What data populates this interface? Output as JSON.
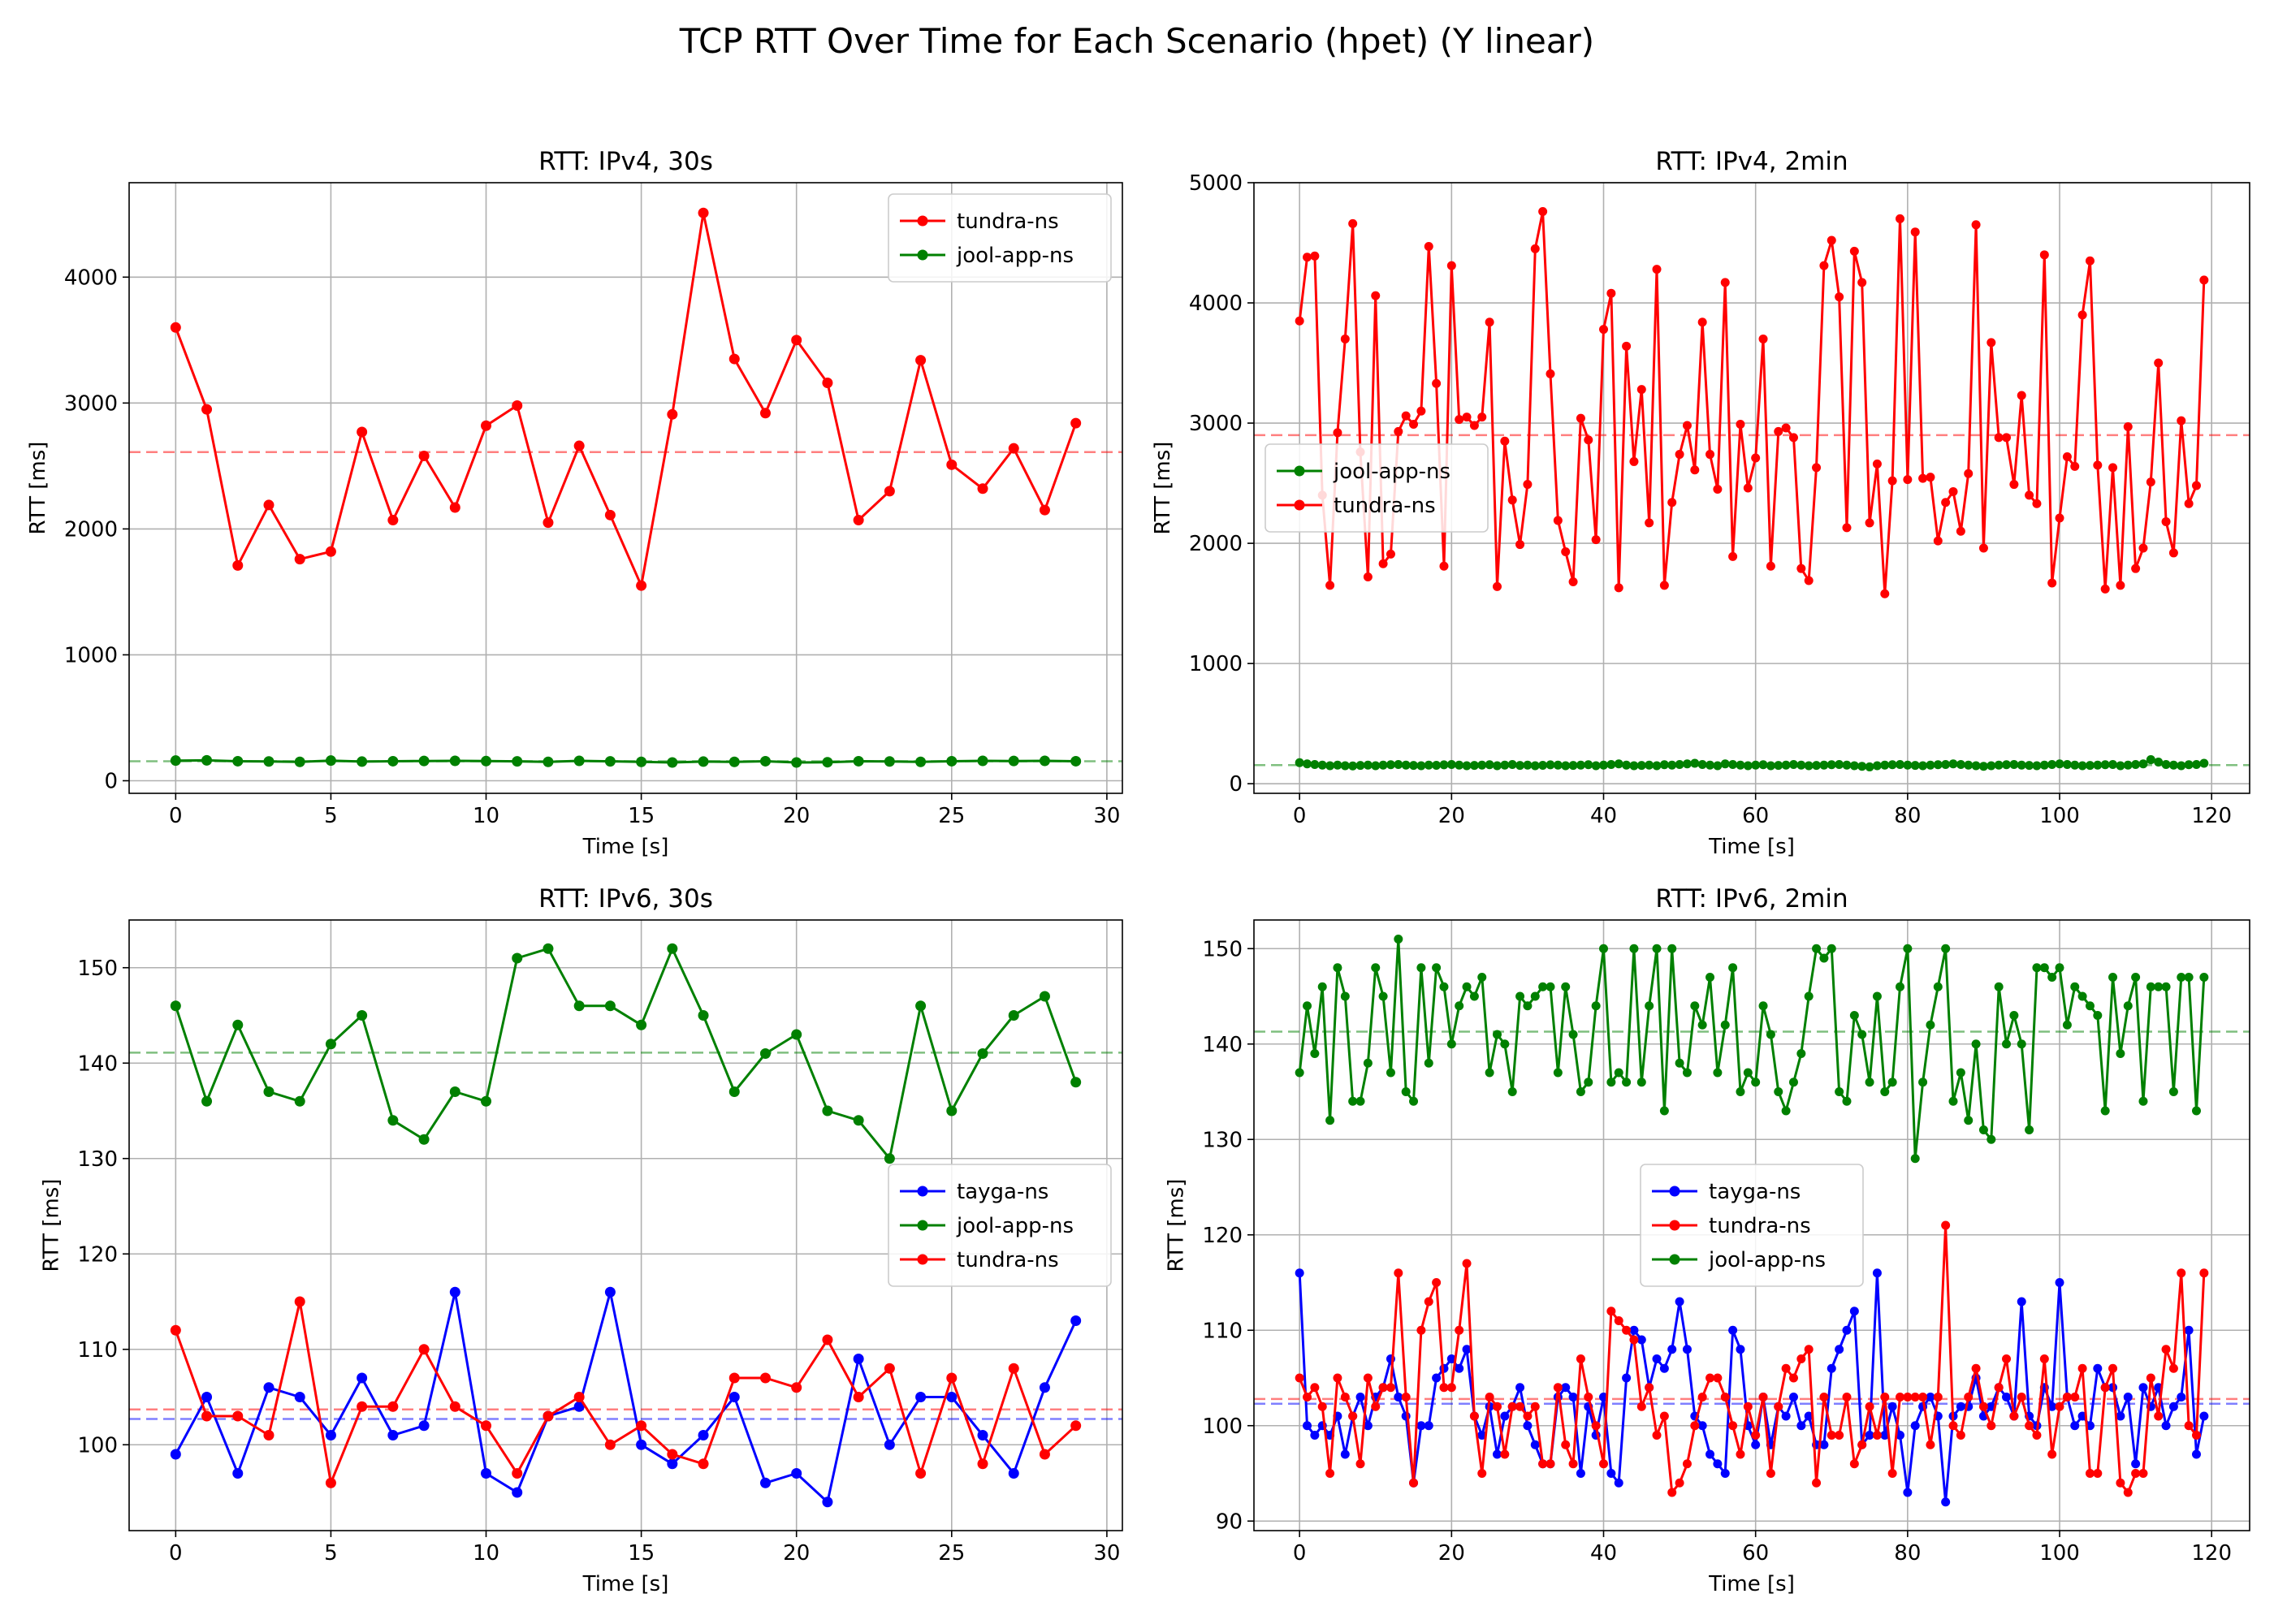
{
  "figure": {
    "suptitle": "TCP RTT Over Time for Each Scenario (hpet) (Y linear)"
  },
  "colors": {
    "red": "#ff0000",
    "green": "#008000",
    "blue": "#0000ff",
    "grid": "#b0b0b0"
  },
  "chart_data": [
    {
      "type": "line",
      "title": "RTT: IPv4, 30s",
      "xlabel": "Time [s]",
      "ylabel": "RTT [ms]",
      "xlim": [
        -1.5,
        30.5
      ],
      "ylim": [
        -100,
        4750
      ],
      "xticks": [
        0,
        5,
        10,
        15,
        20,
        25,
        30
      ],
      "yticks": [
        0,
        1000,
        2000,
        3000,
        4000
      ],
      "grid": true,
      "legend_position": "upper right",
      "x": [
        0,
        1,
        2,
        3,
        4,
        5,
        6,
        7,
        8,
        9,
        10,
        11,
        12,
        13,
        14,
        15,
        16,
        17,
        18,
        19,
        20,
        21,
        22,
        23,
        24,
        25,
        26,
        27,
        28,
        29
      ],
      "series": [
        {
          "name": "tundra-ns",
          "color": "#ff0000",
          "mean": 2610,
          "values": [
            3600,
            2950,
            1710,
            2190,
            1760,
            1820,
            2770,
            2070,
            2580,
            2170,
            2820,
            2980,
            2050,
            2660,
            2110,
            1550,
            2910,
            4510,
            3350,
            2920,
            3500,
            3160,
            2070,
            2300,
            3340,
            2510,
            2320,
            2640,
            2150,
            2840
          ]
        },
        {
          "name": "jool-app-ns",
          "color": "#008000",
          "mean": 155,
          "values": [
            160,
            162,
            155,
            153,
            150,
            160,
            152,
            155,
            157,
            158,
            156,
            154,
            150,
            158,
            154,
            150,
            145,
            152,
            150,
            155,
            145,
            147,
            155,
            153,
            150,
            155,
            158,
            157,
            158,
            155
          ]
        }
      ]
    },
    {
      "type": "line",
      "title": "RTT: IPv4, 2min",
      "xlabel": "Time [s]",
      "ylabel": "RTT [ms]",
      "xlim": [
        -6,
        125
      ],
      "ylim": [
        -80,
        5000
      ],
      "xticks": [
        0,
        20,
        40,
        60,
        80,
        100,
        120
      ],
      "yticks": [
        0,
        1000,
        2000,
        3000,
        4000,
        5000
      ],
      "grid": true,
      "legend_position": "center left",
      "x_start": 0,
      "x_step": 1,
      "series": [
        {
          "name": "jool-app-ns",
          "color": "#008000",
          "mean": 155,
          "values": [
            175,
            165,
            160,
            155,
            150,
            155,
            150,
            148,
            152,
            155,
            150,
            155,
            158,
            160,
            155,
            152,
            150,
            155,
            153,
            157,
            160,
            155,
            150,
            152,
            155,
            158,
            150,
            155,
            160,
            152,
            155,
            150,
            153,
            157,
            155,
            150,
            152,
            155,
            158,
            150,
            155,
            160,
            165,
            155,
            150,
            152,
            155,
            150,
            158,
            155,
            160,
            165,
            170,
            160,
            155,
            150,
            165,
            160,
            155,
            150,
            155,
            158,
            150,
            152,
            155,
            160,
            155,
            150,
            152,
            155,
            158,
            160,
            155,
            150,
            145,
            140,
            150,
            155,
            158,
            160,
            155,
            152,
            150,
            155,
            158,
            160,
            165,
            160,
            155,
            150,
            145,
            150,
            155,
            158,
            160,
            155,
            152,
            150,
            155,
            160,
            165,
            160,
            155,
            150,
            152,
            155,
            158,
            160,
            150,
            155,
            160,
            165,
            200,
            180,
            160,
            155,
            150,
            158,
            160,
            170
          ]
        },
        {
          "name": "tundra-ns",
          "color": "#ff0000",
          "mean": 2900,
          "values": [
            3850,
            4380,
            4390,
            2400,
            1650,
            2920,
            3700,
            4660,
            2760,
            1720,
            4060,
            1830,
            1910,
            2930,
            3060,
            2990,
            3100,
            4470,
            3330,
            1810,
            4310,
            3030,
            3050,
            2980,
            3050,
            3840,
            1640,
            2850,
            2360,
            1990,
            2490,
            4450,
            4760,
            3410,
            2190,
            1930,
            1680,
            3040,
            2860,
            2030,
            3780,
            4080,
            1630,
            3640,
            2680,
            3280,
            2170,
            4280,
            1650,
            2340,
            2740,
            2980,
            2610,
            3840,
            2740,
            2450,
            4170,
            1890,
            2990,
            2460,
            2710,
            3700,
            1810,
            2930,
            2960,
            2880,
            1790,
            1690,
            2630,
            4310,
            4520,
            4050,
            2130,
            4430,
            4170,
            2170,
            2660,
            1580,
            2520,
            4700,
            2530,
            4590,
            2540,
            2550,
            2020,
            2340,
            2430,
            2100,
            2580,
            4650,
            1960,
            3670,
            2880,
            2880,
            2490,
            3230,
            2400,
            2330,
            4400,
            1670,
            2210,
            2720,
            2640,
            3900,
            4350,
            2650,
            1620,
            2630,
            1650,
            2970,
            1790,
            1960,
            2510,
            3500,
            2180,
            1920,
            3020,
            2330,
            2480,
            4190
          ]
        }
      ]
    },
    {
      "type": "line",
      "title": "RTT: IPv6, 30s",
      "xlabel": "Time [s]",
      "ylabel": "RTT [ms]",
      "xlim": [
        -1.5,
        30.5
      ],
      "ylim": [
        91,
        155
      ],
      "xticks": [
        0,
        5,
        10,
        15,
        20,
        25,
        30
      ],
      "yticks": [
        100,
        110,
        120,
        130,
        140,
        150
      ],
      "grid": true,
      "legend_position": "center right",
      "x": [
        0,
        1,
        2,
        3,
        4,
        5,
        6,
        7,
        8,
        9,
        10,
        11,
        12,
        13,
        14,
        15,
        16,
        17,
        18,
        19,
        20,
        21,
        22,
        23,
        24,
        25,
        26,
        27,
        28,
        29
      ],
      "series": [
        {
          "name": "tayga-ns",
          "color": "#0000ff",
          "mean": 102.7,
          "values": [
            99,
            105,
            97,
            106,
            105,
            101,
            107,
            101,
            102,
            116,
            97,
            95,
            103,
            104,
            116,
            100,
            98,
            101,
            105,
            96,
            97,
            94,
            109,
            100,
            105,
            105,
            101,
            97,
            106,
            113
          ]
        },
        {
          "name": "jool-app-ns",
          "color": "#008000",
          "mean": 141.1,
          "values": [
            146,
            136,
            144,
            137,
            136,
            142,
            145,
            134,
            132,
            137,
            136,
            151,
            152,
            146,
            146,
            144,
            152,
            145,
            137,
            141,
            143,
            135,
            134,
            130,
            146,
            135,
            141,
            145,
            147,
            138
          ]
        },
        {
          "name": "tundra-ns",
          "color": "#ff0000",
          "mean": 103.7,
          "values": [
            112,
            103,
            103,
            101,
            115,
            96,
            104,
            104,
            110,
            104,
            102,
            97,
            103,
            105,
            100,
            102,
            99,
            98,
            107,
            107,
            106,
            111,
            105,
            108,
            97,
            107,
            98,
            108,
            99,
            102
          ]
        }
      ]
    },
    {
      "type": "line",
      "title": "RTT: IPv6, 2min",
      "xlabel": "Time [s]",
      "ylabel": "RTT [ms]",
      "xlim": [
        -6,
        125
      ],
      "ylim": [
        89,
        153
      ],
      "xticks": [
        0,
        20,
        40,
        60,
        80,
        100,
        120
      ],
      "yticks": [
        90,
        100,
        110,
        120,
        130,
        140,
        150
      ],
      "grid": true,
      "legend_position": "center",
      "x_start": 0,
      "x_step": 1,
      "series": [
        {
          "name": "tayga-ns",
          "color": "#0000ff",
          "mean": 102.3,
          "values": [
            116,
            100,
            99,
            100,
            99,
            101,
            97,
            101,
            103,
            100,
            103,
            104,
            107,
            103,
            101,
            94,
            100,
            100,
            105,
            106,
            107,
            106,
            108,
            101,
            99,
            102,
            97,
            101,
            102,
            104,
            100,
            98,
            96,
            96,
            103,
            104,
            103,
            95,
            102,
            99,
            103,
            95,
            94,
            105,
            110,
            109,
            104,
            107,
            106,
            108,
            113,
            108,
            101,
            100,
            97,
            96,
            95,
            110,
            108,
            100,
            98,
            103,
            98,
            102,
            101,
            103,
            100,
            101,
            98,
            98,
            106,
            108,
            110,
            112,
            98,
            99,
            116,
            99,
            102,
            99,
            93,
            100,
            102,
            103,
            101,
            92,
            101,
            102,
            102,
            105,
            101,
            102,
            104,
            103,
            101,
            113,
            101,
            100,
            104,
            102,
            115,
            103,
            100,
            101,
            100,
            106,
            104,
            104,
            101,
            103,
            96,
            104,
            102,
            104,
            100,
            102,
            103,
            110,
            97,
            101
          ]
        },
        {
          "name": "tundra-ns",
          "color": "#ff0000",
          "mean": 102.8,
          "values": [
            105,
            103,
            104,
            102,
            95,
            105,
            103,
            101,
            96,
            105,
            102,
            104,
            104,
            116,
            103,
            94,
            110,
            113,
            115,
            104,
            104,
            110,
            117,
            101,
            95,
            103,
            102,
            97,
            102,
            102,
            101,
            102,
            96,
            96,
            104,
            98,
            96,
            107,
            103,
            100,
            96,
            112,
            111,
            110,
            109,
            102,
            104,
            99,
            101,
            93,
            94,
            96,
            100,
            103,
            105,
            105,
            103,
            100,
            97,
            102,
            99,
            103,
            95,
            102,
            106,
            105,
            107,
            108,
            94,
            103,
            99,
            99,
            103,
            96,
            98,
            102,
            99,
            103,
            95,
            103,
            103,
            103,
            103,
            98,
            103,
            121,
            100,
            99,
            103,
            106,
            102,
            100,
            104,
            107,
            101,
            103,
            100,
            99,
            107,
            97,
            102,
            103,
            103,
            106,
            95,
            95,
            104,
            106,
            94,
            93,
            95,
            95,
            105,
            101,
            108,
            106,
            116,
            100,
            99,
            116
          ]
        },
        {
          "name": "jool-app-ns",
          "color": "#008000",
          "mean": 141.3,
          "values": [
            137,
            144,
            139,
            146,
            132,
            148,
            145,
            134,
            134,
            138,
            148,
            145,
            137,
            151,
            135,
            134,
            148,
            138,
            148,
            146,
            140,
            144,
            146,
            145,
            147,
            137,
            141,
            140,
            135,
            145,
            144,
            145,
            146,
            146,
            137,
            146,
            141,
            135,
            136,
            144,
            150,
            136,
            137,
            136,
            150,
            136,
            144,
            150,
            133,
            150,
            138,
            137,
            144,
            142,
            147,
            137,
            142,
            148,
            135,
            137,
            136,
            144,
            141,
            135,
            133,
            136,
            139,
            145,
            150,
            149,
            150,
            135,
            134,
            143,
            141,
            136,
            145,
            135,
            136,
            146,
            150,
            128,
            136,
            142,
            146,
            150,
            134,
            137,
            132,
            140,
            131,
            130,
            146,
            140,
            143,
            140,
            131,
            148,
            148,
            147,
            148,
            142,
            146,
            145,
            144,
            143,
            133,
            147,
            139,
            144,
            147,
            134,
            146,
            146,
            146,
            135,
            147,
            147,
            133,
            147
          ]
        }
      ]
    }
  ]
}
